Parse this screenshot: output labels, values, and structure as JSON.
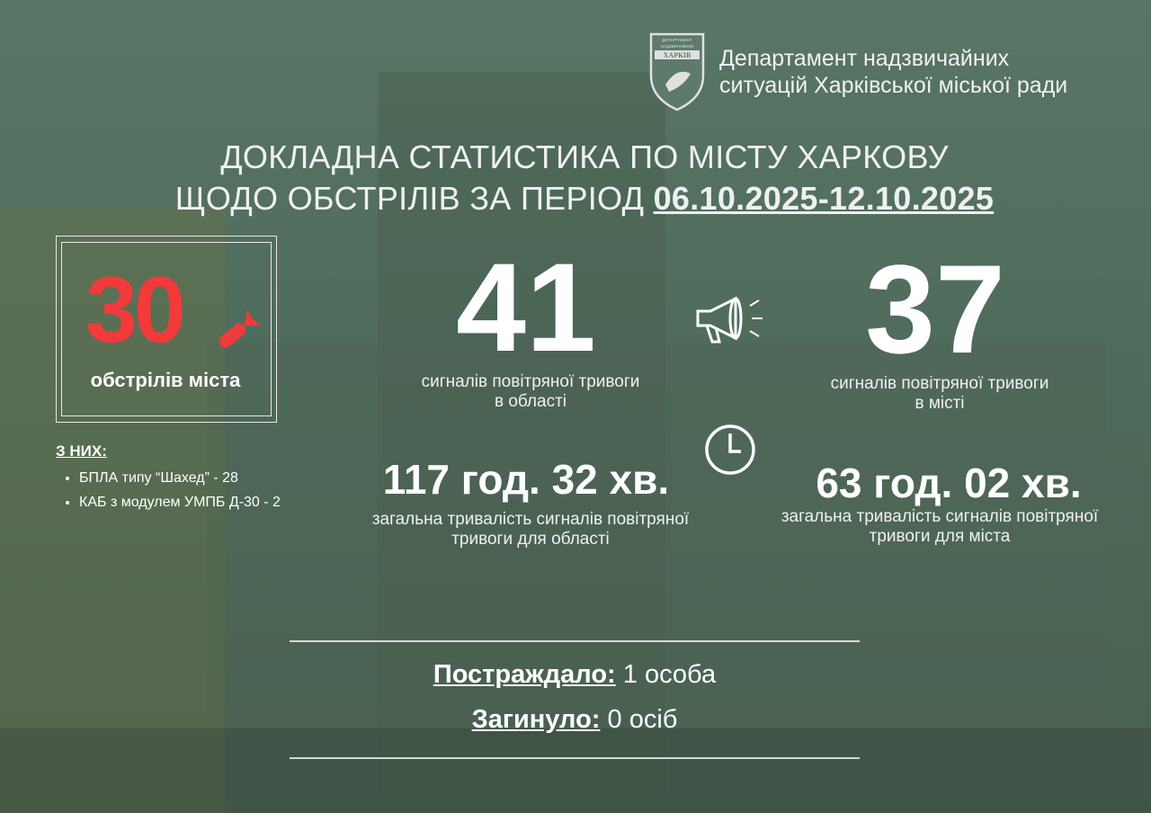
{
  "header": {
    "logo_text": "ДЕПАРТАМЕНТ НАДЗВИЧАЙНИХ СИТУАЦІЙ ХАРКІВ",
    "department_line1": "Департамент надзвичайних",
    "department_line2": "ситуацій Харківської міської ради"
  },
  "title": {
    "line1": "ДОКЛАДНА СТАТИСТИКА ПО МІСТУ ХАРКОВУ",
    "line2_prefix": "ЩОДО ОБСТРІЛІВ ЗА ПЕРІОД ",
    "period": "06.10.2025-12.10.2025"
  },
  "shelling": {
    "count": "30",
    "label": "обстрілів міста",
    "accent": "#f23a3a",
    "breakdown_title": "З НИХ:",
    "breakdown": [
      "БПЛА типу “Шахед” - 28",
      "КАБ з модулем УМПБ Д-30 - 2"
    ]
  },
  "alerts": {
    "region": {
      "count": "41",
      "label_line1": "сигналів повітряної тривоги",
      "label_line2": "в області",
      "duration": "117 год. 32 хв.",
      "duration_line1": "загальна тривалість сигналів повітряної",
      "duration_line2": "тривоги для області"
    },
    "city": {
      "count": "37",
      "label_line1": "сигналів повітряної тривоги",
      "label_line2": "в місті",
      "duration": "63 год. 02 хв.",
      "duration_line1": "загальна тривалість сигналів повітряної",
      "duration_line2": "тривоги для міста"
    }
  },
  "icons": {
    "alert": "megaphone-icon",
    "duration": "clock-icon",
    "shelling": "missile-icon"
  },
  "casualties": {
    "injured_label": "Постраждало:",
    "injured_value": " 1 особа",
    "killed_label": "Загинуло:",
    "killed_value": " 0 осіб"
  }
}
